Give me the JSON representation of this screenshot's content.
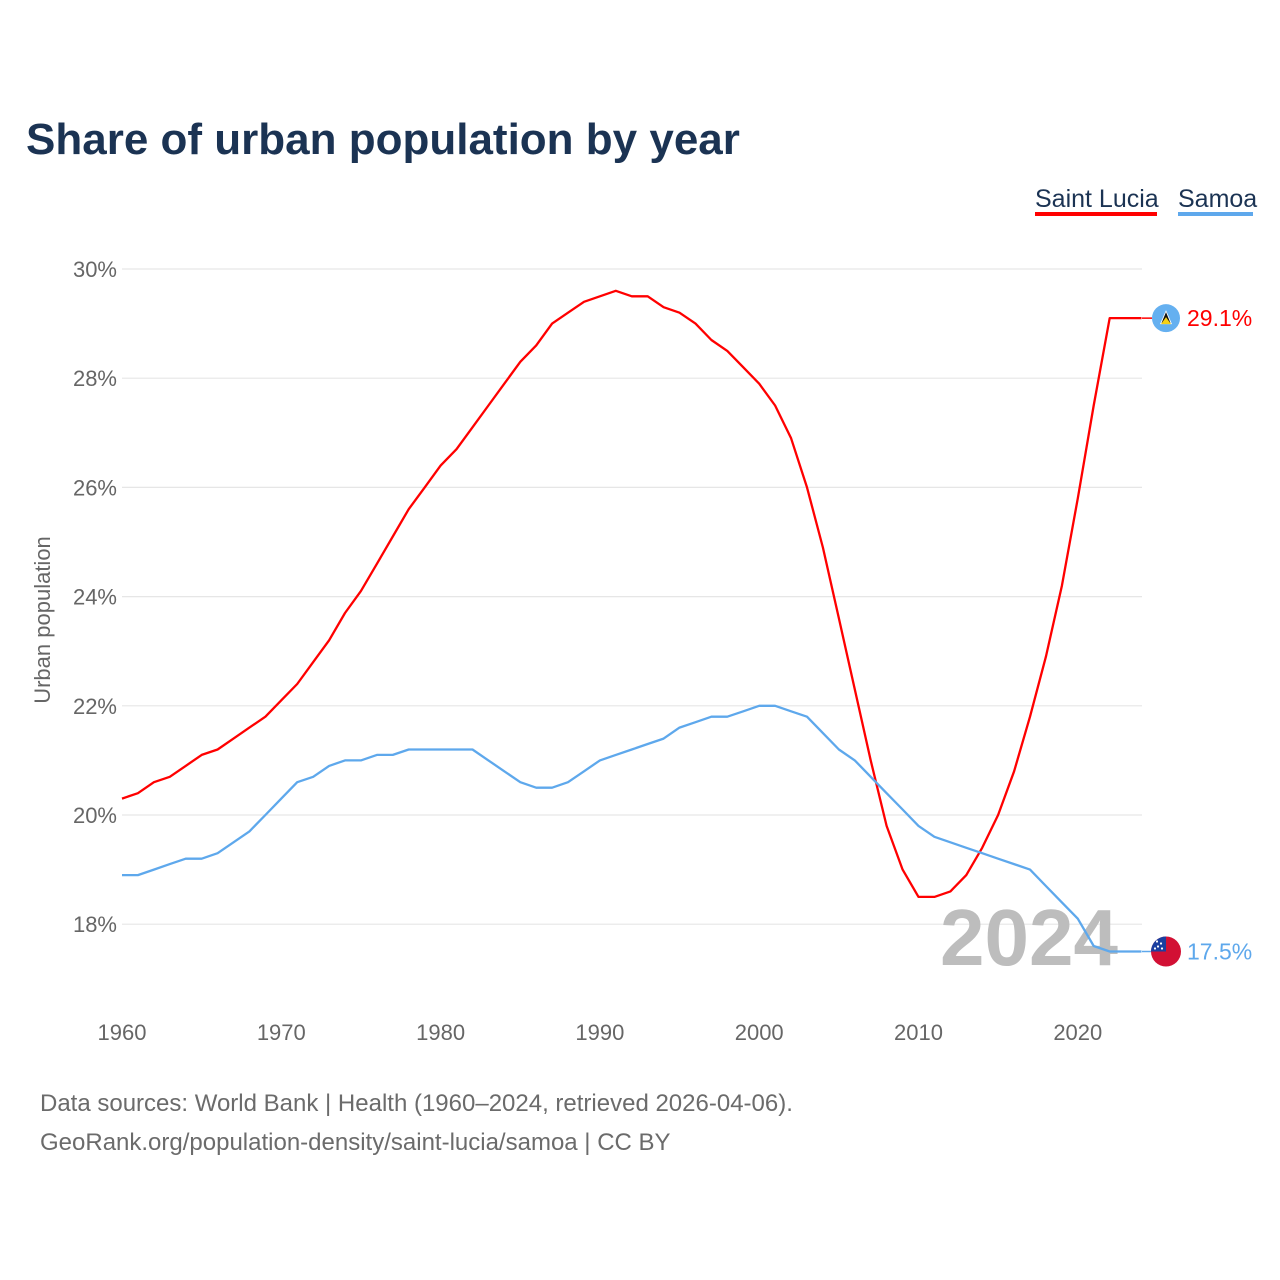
{
  "chart_data": {
    "type": "line",
    "title": "Share of urban population by year",
    "xlabel": "",
    "ylabel": "Urban population",
    "xlim": [
      1960,
      2024
    ],
    "ylim": [
      17.5,
      30
    ],
    "grid": true,
    "legend_placement": "top-right",
    "y_ticks": [
      18,
      20,
      22,
      24,
      26,
      28,
      30
    ],
    "y_tick_labels": [
      "18%",
      "20%",
      "22%",
      "24%",
      "26%",
      "28%",
      "30%"
    ],
    "x_ticks": [
      1960,
      1970,
      1980,
      1990,
      2000,
      2010,
      2020
    ],
    "x_tick_labels": [
      "1960",
      "1970",
      "1980",
      "1990",
      "2000",
      "2010",
      "2020"
    ],
    "watermark_year": "2024",
    "x": [
      1960,
      1961,
      1962,
      1963,
      1964,
      1965,
      1966,
      1967,
      1968,
      1969,
      1970,
      1971,
      1972,
      1973,
      1974,
      1975,
      1976,
      1977,
      1978,
      1979,
      1980,
      1981,
      1982,
      1983,
      1984,
      1985,
      1986,
      1987,
      1988,
      1989,
      1990,
      1991,
      1992,
      1993,
      1994,
      1995,
      1996,
      1997,
      1998,
      1999,
      2000,
      2001,
      2002,
      2003,
      2004,
      2005,
      2006,
      2007,
      2008,
      2009,
      2010,
      2011,
      2012,
      2013,
      2014,
      2015,
      2016,
      2017,
      2018,
      2019,
      2020,
      2021,
      2022,
      2023,
      2024
    ],
    "series": [
      {
        "name": "Saint Lucia",
        "color": "#ff0000",
        "end_label": "29.1%",
        "flag": "saint-lucia-flag",
        "values": [
          20.3,
          20.4,
          20.6,
          20.7,
          20.9,
          21.1,
          21.2,
          21.4,
          21.6,
          21.8,
          22.1,
          22.4,
          22.8,
          23.2,
          23.7,
          24.1,
          24.6,
          25.1,
          25.6,
          26.0,
          26.4,
          26.7,
          27.1,
          27.5,
          27.9,
          28.3,
          28.6,
          29.0,
          29.2,
          29.4,
          29.5,
          29.6,
          29.5,
          29.5,
          29.3,
          29.2,
          29.0,
          28.7,
          28.5,
          28.2,
          27.9,
          27.5,
          26.9,
          26.0,
          24.9,
          23.6,
          22.3,
          21.0,
          19.8,
          19.0,
          18.5,
          18.5,
          18.6,
          18.9,
          19.4,
          20.0,
          20.8,
          21.8,
          22.9,
          24.2,
          25.8,
          27.5,
          29.1,
          29.1,
          29.1
        ]
      },
      {
        "name": "Samoa",
        "color": "#5ea8ec",
        "end_label": "17.5%",
        "flag": "samoa-flag",
        "values": [
          18.9,
          18.9,
          19.0,
          19.1,
          19.2,
          19.2,
          19.3,
          19.5,
          19.7,
          20.0,
          20.3,
          20.6,
          20.7,
          20.9,
          21.0,
          21.0,
          21.1,
          21.1,
          21.2,
          21.2,
          21.2,
          21.2,
          21.2,
          21.0,
          20.8,
          20.6,
          20.5,
          20.5,
          20.6,
          20.8,
          21.0,
          21.1,
          21.2,
          21.3,
          21.4,
          21.6,
          21.7,
          21.8,
          21.8,
          21.9,
          22.0,
          22.0,
          21.9,
          21.8,
          21.5,
          21.2,
          21.0,
          20.7,
          20.4,
          20.1,
          19.8,
          19.6,
          19.5,
          19.4,
          19.3,
          19.2,
          19.1,
          19.0,
          18.7,
          18.4,
          18.1,
          17.6,
          17.5,
          17.5,
          17.5
        ]
      }
    ]
  },
  "footer": {
    "line1": "Data sources: World Bank | Health (1960–2024, retrieved 2026-04-06).",
    "line2": "GeoRank.org/population-density/saint-lucia/samoa | CC BY"
  }
}
